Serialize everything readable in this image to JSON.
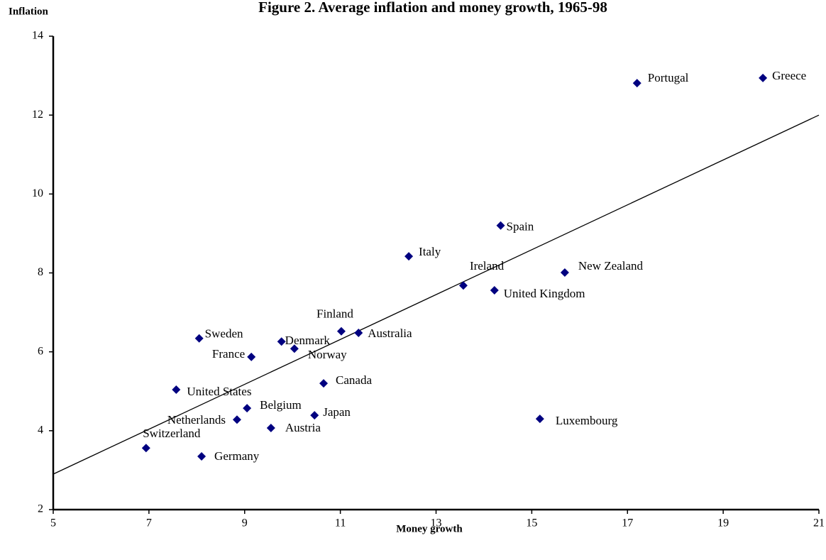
{
  "chart_data": {
    "type": "scatter",
    "title": "Figure 2. Average inflation and money growth, 1965-98",
    "x_label": "Money growth",
    "y_label": "Inflation",
    "xlim": [
      5,
      21
    ],
    "xticks": [
      5,
      7,
      9,
      11,
      13,
      15,
      17,
      19,
      21
    ],
    "ylim": [
      2,
      14
    ],
    "yticks": [
      2,
      4,
      6,
      8,
      10,
      12,
      14
    ],
    "grid": false,
    "color": "#000080",
    "series": [
      {
        "labels": [
          "Portugal",
          "Greece",
          "Spain",
          "Italy",
          "Ireland",
          "New Zealand",
          "United Kingdom",
          "Finland",
          "Australia",
          "Sweden",
          "Denmark",
          "Norway",
          "France",
          "Canada",
          "United States",
          "Belgium",
          "Japan",
          "Netherlands",
          "Austria",
          "Luxembourg",
          "Switzerland",
          "Germany"
        ],
        "x": [
          17.2,
          19.83,
          14.35,
          12.43,
          13.57,
          15.69,
          14.22,
          11.02,
          11.38,
          8.05,
          9.77,
          10.04,
          9.14,
          10.65,
          7.57,
          9.05,
          10.46,
          8.84,
          9.55,
          15.17,
          6.94,
          8.1
        ],
        "values": [
          12.81,
          12.94,
          9.2,
          8.42,
          7.68,
          8.01,
          7.56,
          6.52,
          6.48,
          6.34,
          6.26,
          6.08,
          5.87,
          5.2,
          5.04,
          4.57,
          4.39,
          4.28,
          4.07,
          4.3,
          3.56,
          3.35
        ]
      }
    ],
    "trendline": {
      "x": [
        5,
        21
      ],
      "values": [
        2.9,
        12.0
      ]
    }
  }
}
